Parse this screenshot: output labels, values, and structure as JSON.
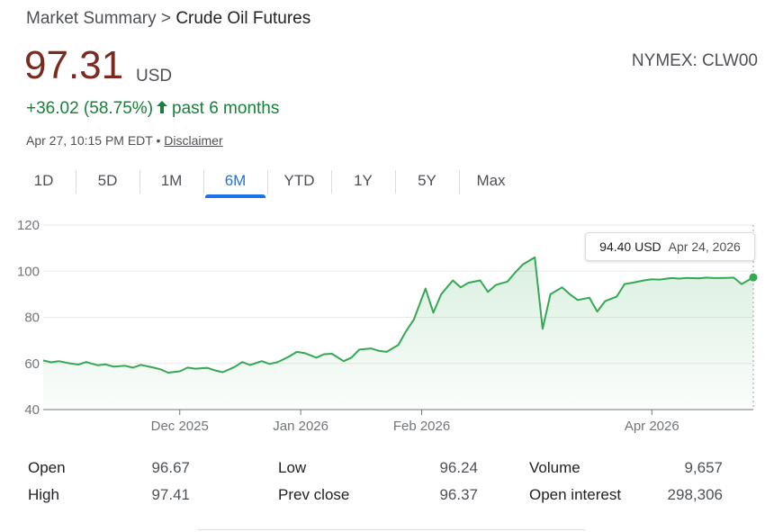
{
  "breadcrumb": {
    "parent": "Market Summary",
    "separator": ">",
    "current": "Crude Oil Futures"
  },
  "quote": {
    "price": "97.31",
    "currency": "USD",
    "exchange": "NYMEX: CLW00",
    "change": "+36.02 (58.75%)",
    "period": "past 6 months",
    "timestamp": "Apr 27, 10:15 PM EDT",
    "bullet": "•",
    "disclaimer": "Disclaimer"
  },
  "tabs": [
    "1D",
    "5D",
    "1M",
    "6M",
    "YTD",
    "1Y",
    "5Y",
    "Max"
  ],
  "active_tab": "6M",
  "colors": {
    "price": "#7b2a20",
    "positive": "#188038",
    "accent": "#1a73e8",
    "line": "#34a853"
  },
  "tooltip": {
    "price": "94.40 USD",
    "date": "Apr 24, 2026"
  },
  "stats": {
    "col1": [
      {
        "label": "Open",
        "value": "96.67"
      },
      {
        "label": "High",
        "value": "97.41"
      }
    ],
    "col2": [
      {
        "label": "Low",
        "value": "96.24"
      },
      {
        "label": "Prev close",
        "value": "96.37"
      }
    ],
    "col3": [
      {
        "label": "Volume",
        "value": "9,657"
      },
      {
        "label": "Open interest",
        "value": "298,306"
      }
    ]
  },
  "chart_data": {
    "type": "area",
    "ylim": [
      40,
      120
    ],
    "yticks": [
      40,
      60,
      80,
      100,
      120
    ],
    "x_range": [
      "2025-10-27",
      "2026-04-27"
    ],
    "xticks": [
      {
        "label": "Dec 2025",
        "date": "2025-12-01"
      },
      {
        "label": "Jan 2026",
        "date": "2026-01-01"
      },
      {
        "label": "Feb 2026",
        "date": "2026-02-01"
      },
      {
        "label": "Apr 2026",
        "date": "2026-04-01"
      }
    ],
    "grid": true,
    "series": [
      {
        "x": [
          "2025-10-27",
          "2025-10-29",
          "2025-10-31",
          "2025-11-03",
          "2025-11-05",
          "2025-11-07",
          "2025-11-10",
          "2025-11-12",
          "2025-11-14",
          "2025-11-17",
          "2025-11-19",
          "2025-11-21",
          "2025-11-24",
          "2025-11-26",
          "2025-11-28",
          "2025-12-01",
          "2025-12-03",
          "2025-12-05",
          "2025-12-08",
          "2025-12-10",
          "2025-12-12",
          "2025-12-15",
          "2025-12-17",
          "2025-12-19",
          "2025-12-22",
          "2025-12-24",
          "2025-12-26",
          "2025-12-29",
          "2025-12-31",
          "2026-01-02",
          "2026-01-05",
          "2026-01-07",
          "2026-01-09",
          "2026-01-12",
          "2026-01-14",
          "2026-01-16",
          "2026-01-19",
          "2026-01-21",
          "2026-01-23",
          "2026-01-26",
          "2026-01-28",
          "2026-01-30",
          "2026-02-02",
          "2026-02-04",
          "2026-02-06",
          "2026-02-09",
          "2026-02-11",
          "2026-02-13",
          "2026-02-16",
          "2026-02-18",
          "2026-02-20",
          "2026-02-23",
          "2026-02-25",
          "2026-02-27",
          "2026-03-02",
          "2026-03-04",
          "2026-03-06",
          "2026-03-09",
          "2026-03-11",
          "2026-03-13",
          "2026-03-16",
          "2026-03-18",
          "2026-03-20",
          "2026-03-23",
          "2026-03-25",
          "2026-03-27",
          "2026-03-30",
          "2026-04-01",
          "2026-04-03",
          "2026-04-06",
          "2026-04-08",
          "2026-04-10",
          "2026-04-13",
          "2026-04-15",
          "2026-04-17",
          "2026-04-20",
          "2026-04-22",
          "2026-04-24",
          "2026-04-27"
        ],
        "y": [
          61.3,
          60.5,
          61.0,
          60.0,
          59.5,
          60.6,
          59.2,
          59.6,
          58.6,
          59.0,
          58.2,
          59.4,
          58.3,
          57.5,
          56.0,
          56.6,
          58.2,
          57.7,
          58.1,
          57.0,
          56.2,
          58.4,
          60.6,
          59.3,
          61.0,
          59.8,
          60.5,
          63.0,
          65.0,
          64.5,
          62.5,
          64.0,
          64.2,
          61.0,
          62.5,
          66.0,
          66.5,
          65.5,
          65.0,
          68.0,
          74.0,
          79.0,
          92.5,
          82.0,
          90.0,
          96.0,
          93.0,
          95.0,
          96.0,
          91.0,
          94.0,
          95.5,
          99.5,
          103.0,
          106.0,
          75.0,
          90.0,
          93.0,
          90.0,
          87.5,
          88.5,
          82.5,
          87.0,
          89.0,
          94.4,
          95.0,
          96.0,
          96.5,
          96.37,
          97.0,
          96.8,
          97.1,
          96.9,
          97.2,
          97.0,
          97.1,
          97.2,
          94.4,
          97.31
        ]
      }
    ]
  }
}
